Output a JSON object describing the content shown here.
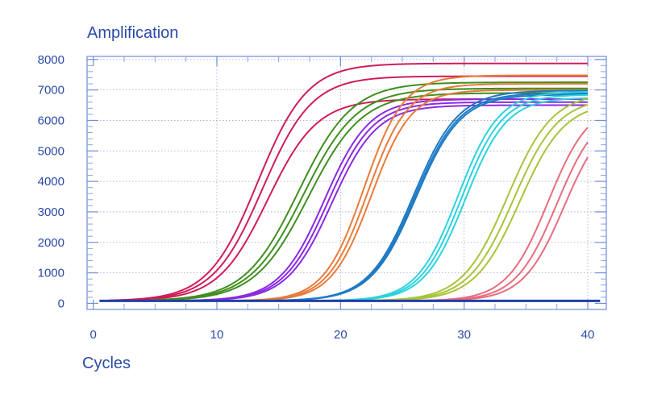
{
  "chart_data": {
    "type": "line",
    "title": "Amplification",
    "xlabel": "Cycles",
    "ylabel": "",
    "xlim": [
      -0.5,
      41.5
    ],
    "ylim": [
      -200,
      8100
    ],
    "x_ticks": [
      0,
      10,
      20,
      30,
      40
    ],
    "y_ticks": [
      0,
      1000,
      2000,
      3000,
      4000,
      5000,
      6000,
      7000,
      8000
    ],
    "grid": true,
    "legend": "none",
    "baseline": {
      "value": 80,
      "x_start": 0.5,
      "x_end": 41,
      "color": "#1f3fa8"
    },
    "groups": [
      {
        "color": "#d01c5a",
        "ct": 14,
        "curves": [
          {
            "x0": 13.3,
            "plateau": 7870,
            "k": 0.5
          },
          {
            "x0": 13.7,
            "plateau": 7450,
            "k": 0.5
          },
          {
            "x0": 14.1,
            "plateau": 6700,
            "k": 0.5
          }
        ]
      },
      {
        "color": "#3f8f1f",
        "ct": 17,
        "curves": [
          {
            "x0": 16.6,
            "plateau": 7250,
            "k": 0.46
          },
          {
            "x0": 17.0,
            "plateau": 7050,
            "k": 0.46
          },
          {
            "x0": 17.4,
            "plateau": 6900,
            "k": 0.46
          }
        ]
      },
      {
        "color": "#8a2be2",
        "ct": 19,
        "curves": [
          {
            "x0": 18.7,
            "plateau": 6700,
            "k": 0.55
          },
          {
            "x0": 19.0,
            "plateau": 6600,
            "k": 0.55
          },
          {
            "x0": 19.3,
            "plateau": 6500,
            "k": 0.55
          }
        ]
      },
      {
        "color": "#e87b3a",
        "ct": 22,
        "curves": [
          {
            "x0": 21.9,
            "plateau": 7480,
            "k": 0.62
          },
          {
            "x0": 22.2,
            "plateau": 7200,
            "k": 0.62
          },
          {
            "x0": 22.5,
            "plateau": 7000,
            "k": 0.62
          }
        ]
      },
      {
        "color": "#1f7bc4",
        "ct": 25,
        "curves": [
          {
            "x0": 25.9,
            "plateau": 6980,
            "k": 0.55
          },
          {
            "x0": 26.0,
            "plateau": 6900,
            "k": 0.55
          },
          {
            "x0": 26.1,
            "plateau": 6850,
            "k": 0.55
          }
        ]
      },
      {
        "color": "#2cd3dd",
        "ct": 29,
        "curves": [
          {
            "x0": 29.5,
            "plateau": 6950,
            "k": 0.6
          },
          {
            "x0": 29.8,
            "plateau": 6850,
            "k": 0.6
          },
          {
            "x0": 30.1,
            "plateau": 6750,
            "k": 0.6
          }
        ]
      },
      {
        "color": "#a8c43a",
        "ct": 33,
        "curves": [
          {
            "x0": 33.5,
            "plateau": 6900,
            "k": 0.55
          },
          {
            "x0": 34.0,
            "plateau": 6750,
            "k": 0.55
          },
          {
            "x0": 34.5,
            "plateau": 6600,
            "k": 0.55
          }
        ]
      },
      {
        "color": "#e86d7e",
        "ct": 36,
        "curves": [
          {
            "x0": 36.8,
            "plateau": 6600,
            "k": 0.6
          },
          {
            "x0": 37.5,
            "plateau": 6450,
            "k": 0.6
          },
          {
            "x0": 38.1,
            "plateau": 6300,
            "k": 0.6
          }
        ]
      }
    ],
    "x_end": 40
  }
}
